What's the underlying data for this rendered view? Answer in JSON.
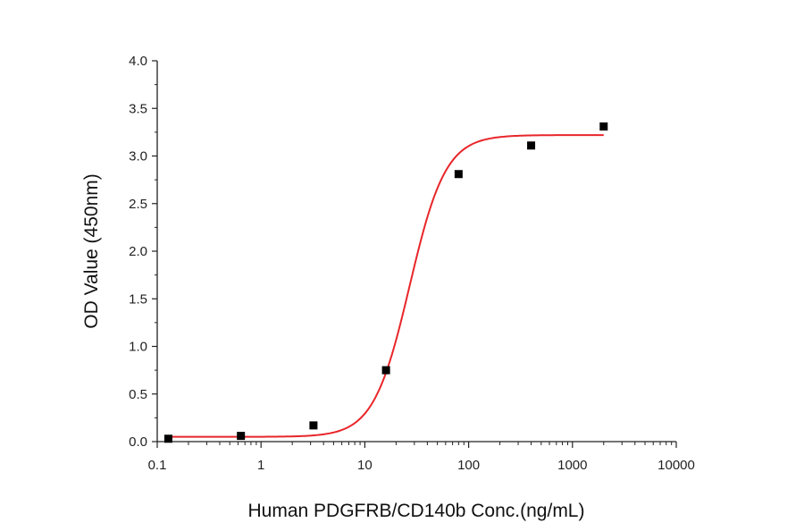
{
  "chart_data": {
    "type": "scatter",
    "xscale": "log",
    "xlim": [
      0.1,
      10000
    ],
    "ylim": [
      0.0,
      4.0
    ],
    "xlabel": "Human PDGFRB/CD140b Conc.(ng/mL)",
    "ylabel": "OD Value (450nm)",
    "x_tick_labels": [
      "0.1",
      "1",
      "10",
      "100",
      "1000",
      "10000"
    ],
    "y_tick_labels": [
      "0.0",
      "0.5",
      "1.0",
      "1.5",
      "2.0",
      "2.5",
      "3.0",
      "3.5",
      "4.0"
    ],
    "series": [
      {
        "marker": "square",
        "color": "#000000",
        "points": [
          {
            "x": 0.128,
            "y": 0.03
          },
          {
            "x": 0.64,
            "y": 0.06
          },
          {
            "x": 3.2,
            "y": 0.17
          },
          {
            "x": 16,
            "y": 0.75
          },
          {
            "x": 80,
            "y": 2.81
          },
          {
            "x": 400,
            "y": 3.11
          },
          {
            "x": 2000,
            "y": 3.31
          }
        ]
      },
      {
        "line": "fit",
        "color": "#e8262a",
        "model": "4PL",
        "bottom": 0.05,
        "top": 3.22,
        "ec50": 27,
        "hill": 2.5,
        "x_range": [
          0.128,
          2000
        ]
      }
    ],
    "grid": false,
    "legend": "none"
  }
}
